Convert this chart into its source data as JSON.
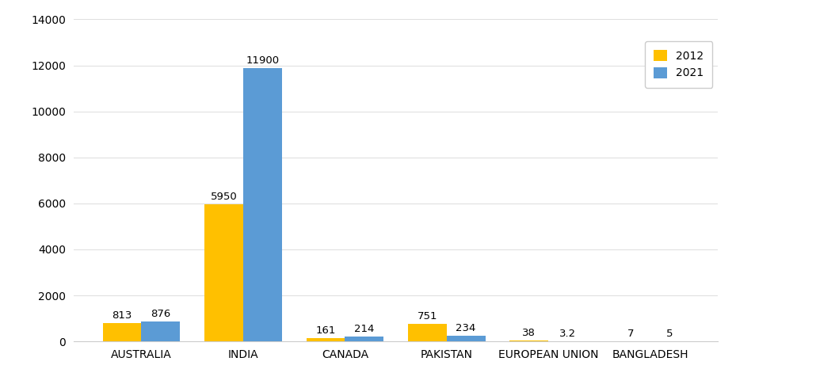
{
  "categories": [
    "AUSTRALIA",
    "INDIA",
    "CANADA",
    "PAKISTAN",
    "EUROPEAN UNION",
    "BANGLADESH"
  ],
  "values_2012": [
    813,
    5950,
    161,
    751,
    38,
    7
  ],
  "values_2021": [
    876,
    11900,
    214,
    234,
    3.2,
    5
  ],
  "labels_2012": [
    "813",
    "5950",
    "161",
    "751",
    "38",
    "7"
  ],
  "labels_2021": [
    "876",
    "11900",
    "214",
    "234",
    "3.2",
    "5"
  ],
  "color_2012": "#FFC000",
  "color_2021": "#5B9BD5",
  "legend_2012": "2012",
  "legend_2021": "2021",
  "ylim": [
    0,
    14000
  ],
  "yticks": [
    0,
    2000,
    4000,
    6000,
    8000,
    10000,
    12000,
    14000
  ],
  "bar_width": 0.38,
  "background_color": "#FFFFFF",
  "grid_color": "#E0E0E0",
  "label_fontsize": 9.5,
  "tick_fontsize": 10,
  "legend_fontsize": 10
}
